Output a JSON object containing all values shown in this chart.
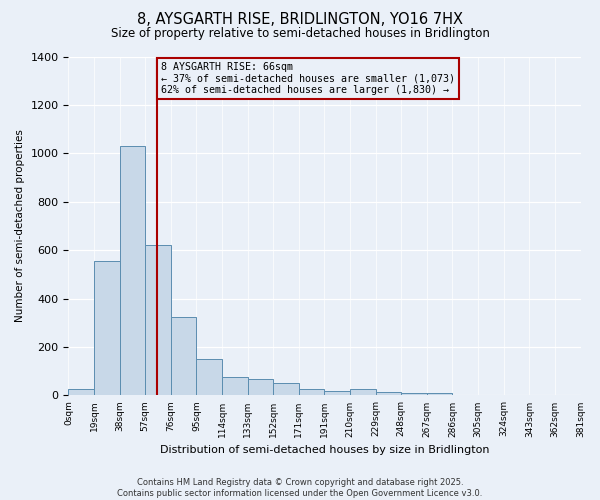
{
  "title": "8, AYSGARTH RISE, BRIDLINGTON, YO16 7HX",
  "subtitle": "Size of property relative to semi-detached houses in Bridlington",
  "xlabel": "Distribution of semi-detached houses by size in Bridlington",
  "ylabel": "Number of semi-detached properties",
  "bar_values": [
    25,
    555,
    1030,
    620,
    325,
    150,
    75,
    68,
    52,
    25,
    20,
    28,
    15,
    10,
    8,
    3,
    2,
    1,
    0,
    0
  ],
  "bin_labels": [
    "0sqm",
    "19sqm",
    "38sqm",
    "57sqm",
    "76sqm",
    "95sqm",
    "114sqm",
    "133sqm",
    "152sqm",
    "171sqm",
    "191sqm",
    "210sqm",
    "229sqm",
    "248sqm",
    "267sqm",
    "286sqm",
    "305sqm",
    "324sqm",
    "343sqm",
    "362sqm",
    "381sqm"
  ],
  "bar_color": "#c8d8e8",
  "bar_edge_color": "#5b8db0",
  "vline_color": "#aa0000",
  "annotation_title": "8 AYSGARTH RISE: 66sqm",
  "annotation_line1": "← 37% of semi-detached houses are smaller (1,073)",
  "annotation_line2": "62% of semi-detached houses are larger (1,830) →",
  "annotation_box_color": "#aa0000",
  "ylim": [
    0,
    1400
  ],
  "yticks": [
    0,
    200,
    400,
    600,
    800,
    1000,
    1200,
    1400
  ],
  "footer1": "Contains HM Land Registry data © Crown copyright and database right 2025.",
  "footer2": "Contains public sector information licensed under the Open Government Licence v3.0.",
  "bg_color": "#eaf0f8"
}
